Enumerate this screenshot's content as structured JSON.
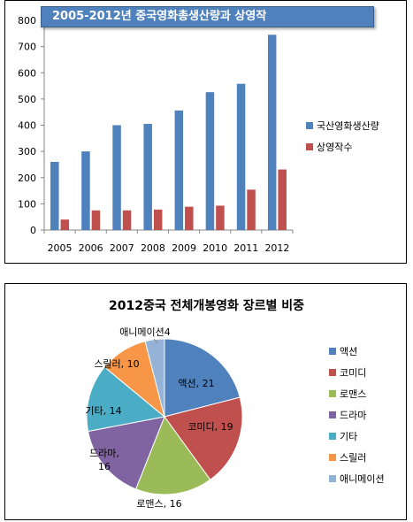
{
  "chart_data": [
    {
      "type": "bar",
      "title": "2005-2012년 중국영화총생산량과 상영작",
      "categories": [
        "2005",
        "2006",
        "2007",
        "2008",
        "2009",
        "2010",
        "2011",
        "2012"
      ],
      "series": [
        {
          "name": "국산영화생산량",
          "values": [
            260,
            300,
            400,
            405,
            456,
            526,
            558,
            745
          ]
        },
        {
          "name": "상영작수",
          "values": [
            40,
            75,
            75,
            78,
            89,
            93,
            154,
            231
          ]
        }
      ],
      "ylim": [
        0,
        800
      ],
      "yticks": [
        0,
        100,
        200,
        300,
        400,
        500,
        600,
        700,
        800
      ],
      "grid": false,
      "legend": "right",
      "colors": [
        "#4f81bd",
        "#c0504d"
      ]
    },
    {
      "type": "pie",
      "title": "2012중국 전체개봉영화 장르별 비중",
      "slices": [
        {
          "label": "액션",
          "value": 21,
          "data_label": "액션, 21",
          "color": "#4f81bd"
        },
        {
          "label": "코미디",
          "value": 19,
          "data_label": "코미디, 19",
          "color": "#c0504d"
        },
        {
          "label": "로맨스",
          "value": 16,
          "data_label": "로맨스, 16",
          "color": "#9bbb59"
        },
        {
          "label": "드라마",
          "value": 16,
          "data_label": "드라마, 16",
          "color": "#8064a2"
        },
        {
          "label": "기타",
          "value": 14,
          "data_label": "기타, 14",
          "color": "#4bacc6"
        },
        {
          "label": "스릴러",
          "value": 10,
          "data_label": "스릴러, 10",
          "color": "#f79646"
        },
        {
          "label": "애니메이션",
          "value": 4,
          "data_label": "애니메이션4",
          "color": "#95b3d7"
        }
      ],
      "legend": "right"
    }
  ]
}
